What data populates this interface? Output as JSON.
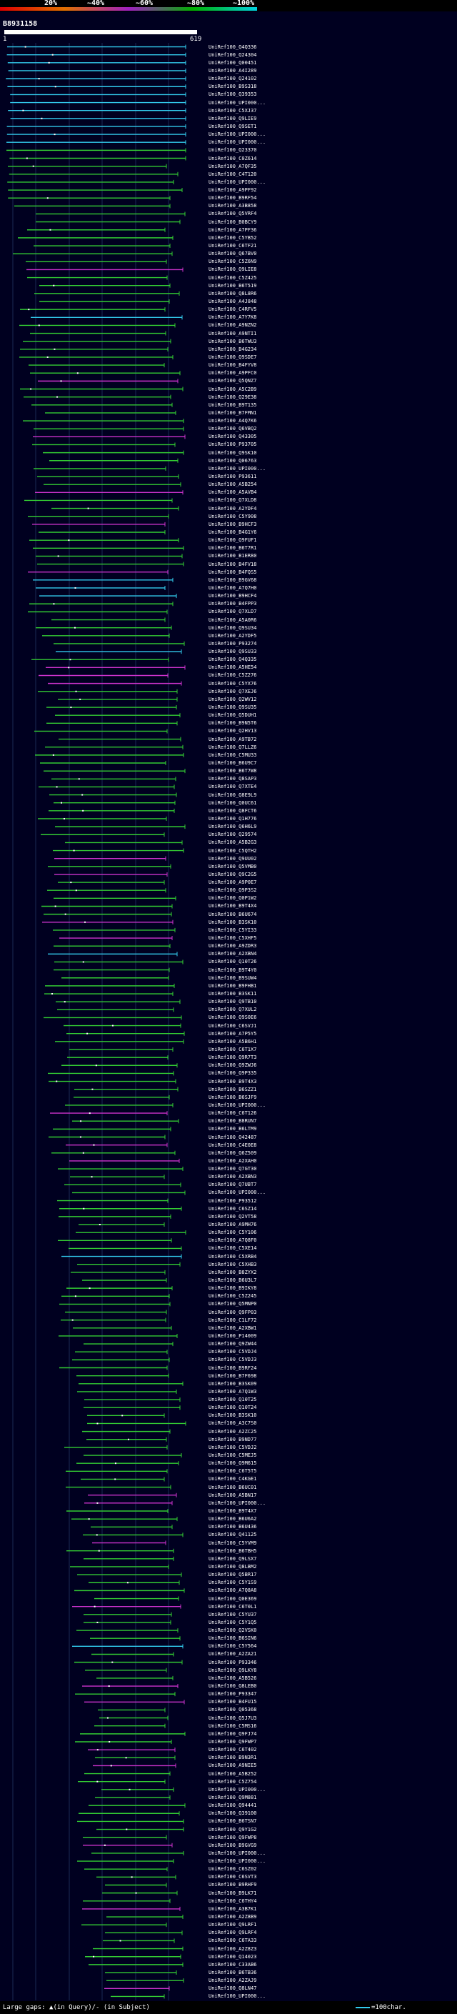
{
  "scale": {
    "labels": [
      "20%",
      "~40%",
      "~60%",
      "~80%",
      "~100%"
    ],
    "colors": [
      "#e00000",
      "#e07000",
      "#a020c0",
      "#00b000",
      "#00d0e0"
    ]
  },
  "query": {
    "id": "B8931158",
    "start": "1",
    "end": "619"
  },
  "colors": {
    "green": "#33cc33",
    "cyan": "#33ccee",
    "magenta": "#cc33cc",
    "white": "#ffffff"
  },
  "hits": [
    "UniRef100_Q4Q336",
    "UniRef100_Q24304",
    "UniRef100_Q00451",
    "UniRef100_A4I289",
    "UniRef100_Q24102",
    "UniRef100_B9S318",
    "UniRef100_Q39353",
    "UniRef100_UPI000...",
    "UniRef100_C5XJ37",
    "UniRef100_Q9LIE9",
    "UniRef100_Q9SET1",
    "UniRef100_UPI000...",
    "UniRef100_UPI000...",
    "UniRef100_Q23370",
    "UniRef100_C0Z614",
    "UniRef100_A7QF35",
    "UniRef100_C4T120",
    "UniRef100_UPI000...",
    "UniRef100_A9PF92",
    "UniRef100_B9RF54",
    "UniRef100_A3B858",
    "UniRef100_Q5VRF4",
    "UniRef100_B0BCY9",
    "UniRef100_A7PF36",
    "UniRef100_C5YB52",
    "UniRef100_C6TF21",
    "UniRef100_Q67BV0",
    "UniRef100_C5Z6N9",
    "UniRef100_Q9LIE8",
    "UniRef100_C5Z425",
    "UniRef100_B6T519",
    "UniRef100_Q8L8R6",
    "UniRef100_A4J848",
    "UniRef100_C4RFV5",
    "UniRef100_A7Y7K8",
    "UniRef100_A9NZN2",
    "UniRef100_A9NTI1",
    "UniRef100_B6TWU3",
    "UniRef100_B4G234",
    "UniRef100_Q9SDE7",
    "UniRef100_B4FYV8",
    "UniRef100_A9PFC0",
    "UniRef100_Q5QNZ7",
    "UniRef100_A5C2B9",
    "UniRef100_Q29E38",
    "UniRef100_B9T135",
    "UniRef100_B7FMN1",
    "UniRef100_A4Q7K6",
    "UniRef100_Q6VBQ2",
    "UniRef100_Q43305",
    "UniRef100_P93705",
    "UniRef100_Q9SK10",
    "UniRef100_Q06763",
    "UniRef100_UPI000...",
    "UniRef100_P93611",
    "UniRef100_A5B254",
    "UniRef100_A5AVB4",
    "UniRef100_Q7XLD8",
    "UniRef100_A2YDF4",
    "UniRef100_C5Y908",
    "UniRef100_B9HCF3",
    "UniRef100_B4G1Y6",
    "UniRef100_Q9FUF1",
    "UniRef100_B6T7R1",
    "UniRef100_B1ER80",
    "UniRef100_B4FV18",
    "UniRef100_B4FQS5",
    "UniRef100_B9GV68",
    "UniRef100_A7Q7H0",
    "UniRef100_B9HCF4",
    "UniRef100_B4FPP3",
    "UniRef100_Q7XLD7",
    "UniRef100_A5A0R6",
    "UniRef100_Q9SU34",
    "UniRef100_A2YDF5",
    "UniRef100_P93274",
    "UniRef100_Q9SU33",
    "UniRef100_Q4Q335",
    "UniRef100_A5HE54",
    "UniRef100_C5Z276",
    "UniRef100_C5YX76",
    "UniRef100_Q7XEJ6",
    "UniRef100_Q2WV12",
    "UniRef100_Q9SU35",
    "UniRef100_Q5DUH1",
    "UniRef100_B9N5T6",
    "UniRef100_Q2HV13",
    "UniRef100_A9TB72",
    "UniRef100_Q7LLZ6",
    "UniRef100_C5MU33",
    "UniRef100_B6U9C7",
    "UniRef100_B6T7W8",
    "UniRef100_Q8SAP3",
    "UniRef100_Q7XTE4",
    "UniRef100_Q8E9L9",
    "UniRef100_Q0UC61",
    "UniRef100_Q8FCT6",
    "UniRef100_Q1H776",
    "UniRef100_Q6H6L9",
    "UniRef100_Q29574",
    "UniRef100_A5B2G3",
    "UniRef100_C5QTH2",
    "UniRef100_Q9UU02",
    "UniRef100_Q5VMB0",
    "UniRef100_Q9C2G5",
    "UniRef100_A9P0E7",
    "UniRef100_Q9P3S2",
    "UniRef100_Q0P1W2",
    "UniRef100_B9T4X4",
    "UniRef100_B6U674",
    "UniRef100_B3SK10",
    "UniRef100_C5YI33",
    "UniRef100_C5XHF5",
    "UniRef100_A9ZDR3",
    "UniRef100_A2XBN4",
    "UniRef100_Q10T26",
    "UniRef100_B9T4Y0",
    "UniRef100_B9SUW4",
    "UniRef100_B9FHB1",
    "UniRef100_B3SK11",
    "UniRef100_Q9TB10",
    "UniRef100_Q7XUL2",
    "UniRef100_Q9S0E6",
    "UniRef100_C6SVJ1",
    "UniRef100_A7P5Y5",
    "UniRef100_A5B6H1",
    "UniRef100_C6T1X7",
    "UniRef100_Q9R7T3",
    "UniRef100_Q9ZWJ6",
    "UniRef100_Q9P335",
    "UniRef100_B9T4X3",
    "UniRef100_B6SZZ1",
    "UniRef100_B6SJF9",
    "UniRef100_UPI000...",
    "UniRef100_C6T126",
    "UniRef100_B8RUN7",
    "UniRef100_B6LTM9",
    "UniRef100_Q42487",
    "UniRef100_C4E0E8",
    "UniRef100_Q6Z509",
    "UniRef100_A2XAH0",
    "UniRef100_Q7GT30",
    "UniRef100_A2XBN3",
    "UniRef100_Q7UBT7",
    "UniRef100_UPI000...",
    "UniRef100_P93512",
    "UniRef100_C6SZ14",
    "UniRef100_Q2VT58",
    "UniRef100_A9MH76",
    "UniRef100_C5Y106",
    "UniRef100_A7Q8F0",
    "UniRef100_C5XE14",
    "UniRef100_C5XRB4",
    "UniRef100_C5XHB3",
    "UniRef100_B8ZYX2",
    "UniRef100_B6U3L7",
    "UniRef100_B9IKY8",
    "UniRef100_C5Z245",
    "UniRef100_Q5MNP0",
    "UniRef100_Q9FP03",
    "UniRef100_C1LF72",
    "UniRef100_A2XBW1",
    "UniRef100_P14009",
    "UniRef100_Q9ZW44",
    "UniRef100_C5VDJ4",
    "UniRef100_C5VDJ3",
    "UniRef100_B9RF24",
    "UniRef100_B7F698",
    "UniRef100_B3SK09",
    "UniRef100_A7Q1W3",
    "UniRef100_Q10T25",
    "UniRef100_Q10T24",
    "UniRef100_B3SK10",
    "UniRef100_A3C7S0",
    "UniRef100_A2ZC25",
    "UniRef100_B9ND77",
    "UniRef100_C5VDJ2",
    "UniRef100_C5MEJ5",
    "UniRef100_Q9M615",
    "UniRef100_C6T5T5",
    "UniRef100_C4KGE1",
    "UniRef100_B6UC01",
    "UniRef100_A5BN17",
    "UniRef100_UPI000...",
    "UniRef100_B9T4X7",
    "UniRef100_B6U6A2",
    "UniRef100_B6U436",
    "UniRef100_Q41125",
    "UniRef100_C5YVM9",
    "UniRef100_B6TBH5",
    "UniRef100_Q9LSX7",
    "UniRef100_Q8LBM2",
    "UniRef100_Q5BR17",
    "UniRef100_C5Y1S9",
    "UniRef100_A7Q8A8",
    "UniRef100_Q0E369",
    "UniRef100_C6T0L1",
    "UniRef100_C5YU37",
    "UniRef100_C5Y1Q5",
    "UniRef100_Q2VSK0",
    "UniRef100_B6SIN6",
    "UniRef100_C5Y564",
    "UniRef100_A2ZA21",
    "UniRef100_P93346",
    "UniRef100_Q9LKY8",
    "UniRef100_A5B526",
    "UniRef100_Q8LEB0",
    "UniRef100_P93347",
    "UniRef100_B4FU15",
    "UniRef100_Q05368",
    "UniRef100_Q5J7U3",
    "UniRef100_C5MS16",
    "UniRef100_Q9FJ74",
    "UniRef100_Q9FWP7",
    "UniRef100_C6T402",
    "UniRef100_B9N3R1",
    "UniRef100_A9NIE5",
    "UniRef100_A5B252",
    "UniRef100_C5Z754",
    "UniRef100_UPI000...",
    "UniRef100_Q9M881",
    "UniRef100_Q94441",
    "UniRef100_Q39100",
    "UniRef100_B6TSN7",
    "UniRef100_Q9Y1G2",
    "UniRef100_Q9FWP8",
    "UniRef100_B9GVG9",
    "UniRef100_UPI000...",
    "UniRef100_UPI000...",
    "UniRef100_C6SZ02",
    "UniRef100_C6SVT3",
    "UniRef100_B9RHF9",
    "UniRef100_B9LK71",
    "UniRef100_C6THY4",
    "UniRef100_A3B7K1",
    "UniRef100_A2Z8B9",
    "UniRef100_Q9LRF1",
    "UniRef100_Q9LRF4",
    "UniRef100_C6TA33",
    "UniRef100_A2Z8Z3",
    "UniRef100_Q14023",
    "UniRef100_C33AB6",
    "UniRef100_B6TB36",
    "UniRef100_A2ZAJ9",
    "UniRef100_Q8LN47",
    "UniRef100_UPI000..."
  ],
  "legend": {
    "gaps_text": "Large gaps: ▲(in Query)/- (in Subject)",
    "scale_text": "=100char."
  }
}
